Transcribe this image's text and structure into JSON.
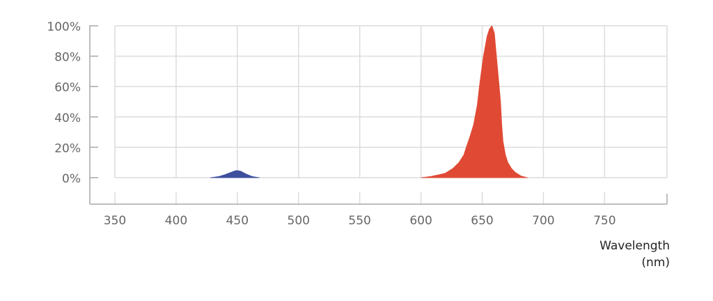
{
  "chart_data": {
    "type": "area",
    "title": "",
    "xlabel": "Wavelength",
    "xunit": "(nm)",
    "ylabel": "",
    "xlim": [
      350,
      801
    ],
    "ylim": [
      0,
      100
    ],
    "xticks": [
      350,
      400,
      450,
      500,
      550,
      600,
      650,
      700,
      750
    ],
    "yticks": [
      "0%",
      "20%",
      "40%",
      "60%",
      "80%",
      "100%"
    ],
    "grid": true,
    "series": [
      {
        "color": "#3e4f9e",
        "x": [
          428,
          435,
          440,
          445,
          448,
          450,
          453,
          457,
          462,
          468
        ],
        "y": [
          0,
          0.8,
          2,
          3.6,
          4.5,
          4.7,
          4.2,
          2.5,
          0.8,
          0
        ]
      },
      {
        "color": "#e04a35",
        "x": [
          600,
          608,
          615,
          620,
          626,
          631,
          635,
          637,
          640,
          643,
          646,
          648,
          651,
          654,
          656,
          658,
          660,
          661,
          663,
          665,
          666,
          667,
          669,
          671,
          674,
          677,
          682,
          687
        ],
        "y": [
          0,
          0.8,
          2,
          3,
          6,
          10,
          15,
          20,
          27,
          35,
          48,
          62,
          80,
          93,
          98,
          100,
          95,
          86,
          68,
          50,
          35,
          24,
          15,
          10,
          6,
          3.5,
          1,
          0
        ]
      }
    ]
  }
}
